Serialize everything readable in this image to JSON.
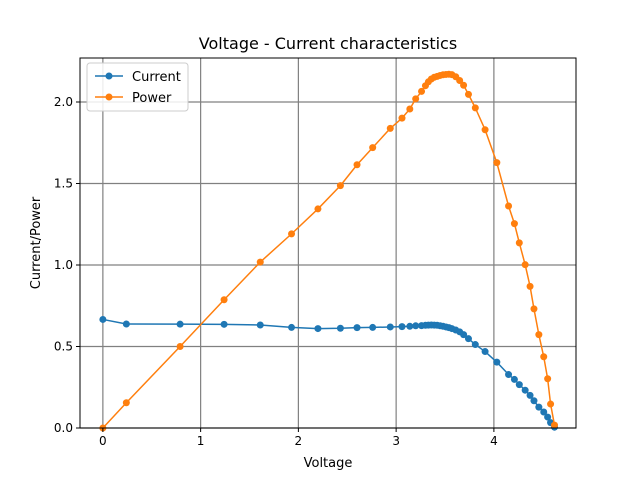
{
  "chart_data": {
    "type": "line",
    "title": "Voltage - Current characteristics",
    "xlabel": "Voltage",
    "ylabel": "Current/Power",
    "xlim": [
      -0.234,
      4.84
    ],
    "ylim": [
      0.0,
      2.27
    ],
    "x_ticks": [
      0,
      1,
      2,
      3,
      4
    ],
    "y_ticks": [
      0.0,
      0.5,
      1.0,
      1.5,
      2.0
    ],
    "grid": true,
    "legend_position": "top-left",
    "series": [
      {
        "name": "Current",
        "color": "#1f77b4",
        "marker": "circle",
        "points": [
          [
            0.0,
            0.666
          ],
          [
            0.24,
            0.638
          ],
          [
            0.79,
            0.637
          ],
          [
            1.24,
            0.636
          ],
          [
            1.61,
            0.632
          ],
          [
            1.93,
            0.617
          ],
          [
            2.2,
            0.61
          ],
          [
            2.43,
            0.612
          ],
          [
            2.6,
            0.616
          ],
          [
            2.76,
            0.617
          ],
          [
            2.94,
            0.62
          ],
          [
            3.06,
            0.622
          ],
          [
            3.14,
            0.624
          ],
          [
            3.2,
            0.627
          ],
          [
            3.26,
            0.628
          ],
          [
            3.3,
            0.63
          ],
          [
            3.33,
            0.631
          ],
          [
            3.36,
            0.632
          ],
          [
            3.39,
            0.631
          ],
          [
            3.42,
            0.63
          ],
          [
            3.45,
            0.627
          ],
          [
            3.48,
            0.624
          ],
          [
            3.51,
            0.62
          ],
          [
            3.54,
            0.616
          ],
          [
            3.57,
            0.61
          ],
          [
            3.61,
            0.601
          ],
          [
            3.65,
            0.59
          ],
          [
            3.69,
            0.573
          ],
          [
            3.74,
            0.548
          ],
          [
            3.81,
            0.512
          ],
          [
            3.91,
            0.469
          ],
          [
            4.03,
            0.404
          ],
          [
            4.15,
            0.328
          ],
          [
            4.21,
            0.298
          ],
          [
            4.26,
            0.266
          ],
          [
            4.32,
            0.232
          ],
          [
            4.37,
            0.2
          ],
          [
            4.41,
            0.167
          ],
          [
            4.46,
            0.128
          ],
          [
            4.51,
            0.098
          ],
          [
            4.55,
            0.067
          ],
          [
            4.58,
            0.033
          ],
          [
            4.62,
            0.005
          ]
        ]
      },
      {
        "name": "Power",
        "color": "#ff7f0e",
        "marker": "circle",
        "points": [
          [
            0.0,
            0.0
          ],
          [
            0.24,
            0.155
          ],
          [
            0.79,
            0.5
          ],
          [
            1.24,
            0.787
          ],
          [
            1.61,
            1.018
          ],
          [
            1.93,
            1.191
          ],
          [
            2.2,
            1.344
          ],
          [
            2.43,
            1.487
          ],
          [
            2.6,
            1.615
          ],
          [
            2.76,
            1.72
          ],
          [
            2.94,
            1.838
          ],
          [
            3.06,
            1.901
          ],
          [
            3.14,
            1.957
          ],
          [
            3.2,
            2.019
          ],
          [
            3.26,
            2.065
          ],
          [
            3.3,
            2.1
          ],
          [
            3.33,
            2.124
          ],
          [
            3.36,
            2.141
          ],
          [
            3.39,
            2.152
          ],
          [
            3.42,
            2.157
          ],
          [
            3.45,
            2.163
          ],
          [
            3.48,
            2.167
          ],
          [
            3.51,
            2.169
          ],
          [
            3.54,
            2.17
          ],
          [
            3.57,
            2.168
          ],
          [
            3.61,
            2.155
          ],
          [
            3.65,
            2.132
          ],
          [
            3.69,
            2.103
          ],
          [
            3.74,
            2.047
          ],
          [
            3.81,
            1.964
          ],
          [
            3.91,
            1.83
          ],
          [
            4.03,
            1.628
          ],
          [
            4.15,
            1.362
          ],
          [
            4.21,
            1.254
          ],
          [
            4.26,
            1.136
          ],
          [
            4.32,
            1.002
          ],
          [
            4.37,
            0.869
          ],
          [
            4.41,
            0.731
          ],
          [
            4.46,
            0.573
          ],
          [
            4.51,
            0.437
          ],
          [
            4.55,
            0.302
          ],
          [
            4.58,
            0.147
          ],
          [
            4.62,
            0.018
          ]
        ]
      }
    ]
  }
}
